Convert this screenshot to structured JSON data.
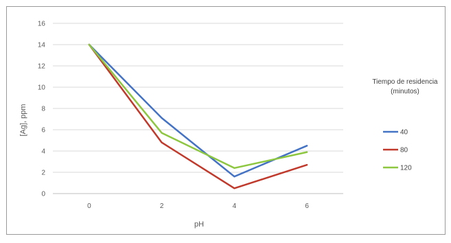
{
  "chart_data": {
    "type": "line",
    "title": "",
    "xlabel": "pH",
    "ylabel": "[Ag], ppm",
    "categories": [
      "0",
      "2",
      "4",
      "6"
    ],
    "ylim": [
      0,
      16
    ],
    "yticks": [
      0,
      2,
      4,
      6,
      8,
      10,
      12,
      14,
      16
    ],
    "grid": true,
    "legend": {
      "title_lines": [
        "Tiempo de residencia",
        "(minutos)"
      ],
      "placement": "right"
    },
    "series": [
      {
        "name": "40",
        "color": "#4472C4",
        "values": [
          14,
          7.1,
          1.6,
          4.5
        ]
      },
      {
        "name": "80",
        "color": "#C0392B",
        "values": [
          14,
          4.8,
          0.5,
          2.7
        ]
      },
      {
        "name": "120",
        "color": "#8DC63F",
        "values": [
          14,
          5.7,
          2.4,
          3.9
        ]
      }
    ]
  }
}
